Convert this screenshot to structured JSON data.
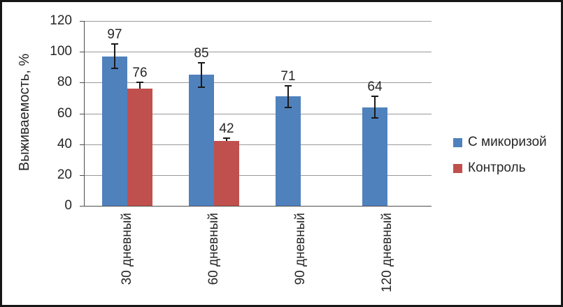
{
  "chart_data": {
    "type": "bar",
    "title": "",
    "ylabel": "Выживаемость, %",
    "xlabel": "",
    "categories": [
      "30 дневный",
      "60 дневный",
      "90 дневный",
      "120 дневный"
    ],
    "series": [
      {
        "id": "mycorrhiza",
        "name": "С микоризой",
        "color": "#4F81BD",
        "values": [
          97,
          85,
          71,
          64
        ],
        "errors": [
          8,
          8,
          7,
          7
        ],
        "error_dir": "both"
      },
      {
        "id": "control",
        "name": "Контроль",
        "color": "#C0504D",
        "values": [
          76,
          42,
          null,
          null
        ],
        "errors": [
          4,
          2,
          null,
          null
        ],
        "error_dir": "plus"
      }
    ],
    "ylim": [
      0,
      120
    ],
    "yticks": [
      0,
      20,
      40,
      60,
      80,
      100,
      120
    ],
    "grid": true,
    "data_labels": true,
    "legend_position": "right",
    "colors": {
      "gridline": "#999999",
      "axis": "#4d4d4d",
      "text": "#262626",
      "error_bar": "#1a1a1a",
      "background": "#ffffff",
      "frame_border": "#161616"
    }
  }
}
